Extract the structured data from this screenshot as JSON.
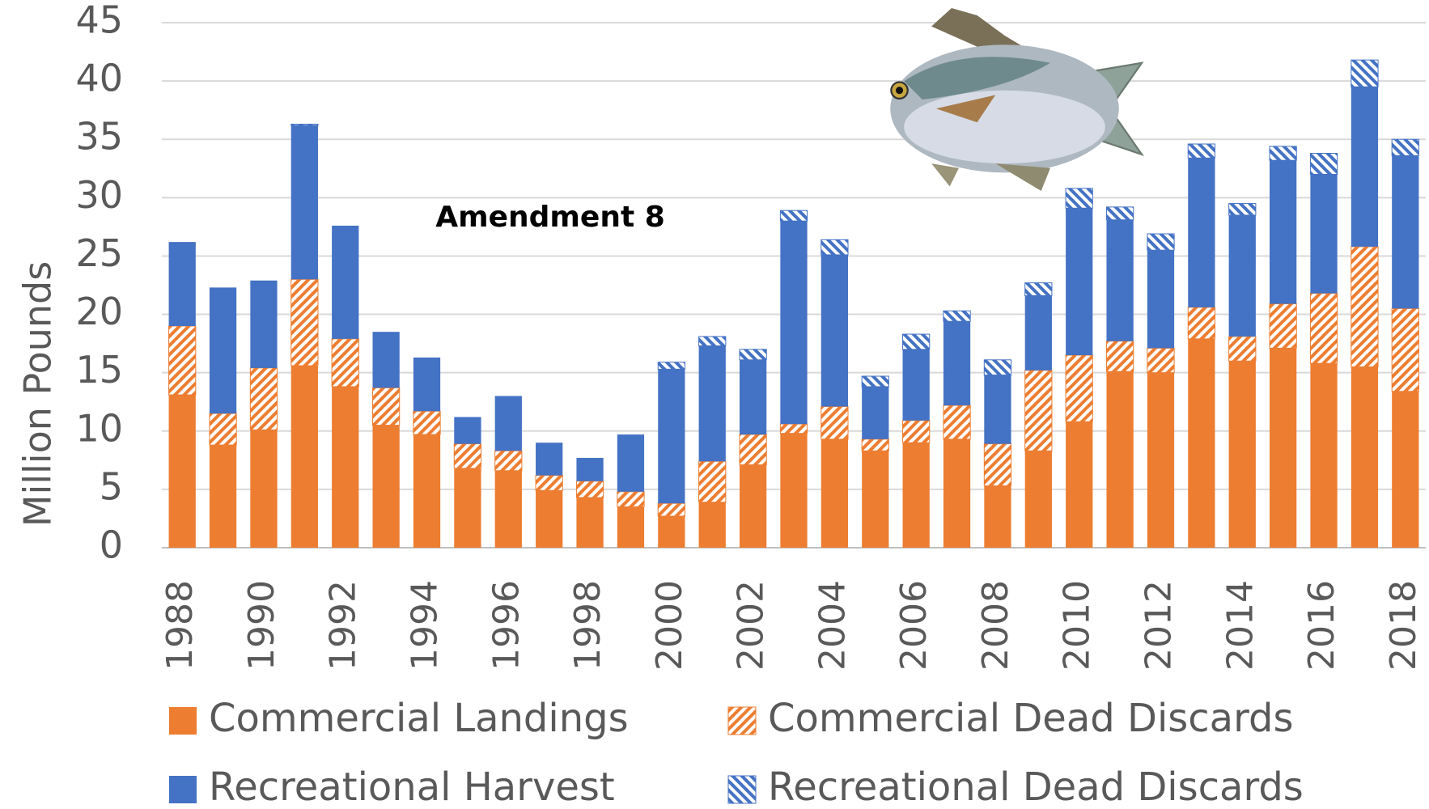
{
  "chart_data": {
    "type": "stacked_bar",
    "y_label": "Million Pounds",
    "annotation": "Amendment 8",
    "categories": [
      "1988",
      null,
      "1990",
      null,
      "1992",
      null,
      "1994",
      null,
      "1996",
      null,
      "1998",
      null,
      "2000",
      null,
      "2002",
      null,
      "2004",
      null,
      "2006",
      null,
      "2008",
      null,
      "2010",
      null,
      "2012",
      null,
      "2014",
      null,
      "2016",
      null,
      "2018"
    ],
    "series": [
      {
        "name": "Commercial Landings",
        "color": "#ED7D31",
        "fill": "solid",
        "values": [
          13.1,
          8.8,
          10.1,
          15.6,
          13.8,
          10.5,
          9.7,
          6.8,
          6.6,
          4.9,
          4.3,
          3.5,
          2.7,
          3.9,
          7.1,
          9.8,
          9.3,
          8.3,
          9.0,
          9.3,
          5.3,
          8.3,
          10.8,
          15.1,
          15.0,
          17.9,
          16.0,
          17.1,
          15.8,
          15.5,
          13.4
        ]
      },
      {
        "name": "Commercial Dead Discards",
        "color": "#ED7D31",
        "fill": "hatched",
        "values": [
          5.9,
          2.7,
          5.3,
          7.4,
          4.1,
          3.2,
          2.0,
          2.1,
          1.7,
          1.3,
          1.4,
          1.3,
          1.1,
          3.5,
          2.6,
          0.8,
          2.8,
          1.0,
          1.9,
          2.9,
          3.6,
          6.9,
          5.7,
          2.6,
          2.1,
          2.7,
          2.1,
          3.8,
          6.0,
          10.3,
          7.1
        ]
      },
      {
        "name": "Recreational Harvest",
        "color": "#4472C4",
        "fill": "solid",
        "values": [
          7.2,
          10.8,
          7.5,
          13.2,
          9.7,
          4.8,
          4.6,
          2.3,
          4.7,
          2.8,
          2.0,
          4.9,
          11.5,
          9.9,
          6.4,
          17.4,
          13.0,
          4.5,
          6.1,
          7.2,
          5.9,
          6.4,
          12.6,
          10.4,
          8.4,
          12.8,
          10.4,
          12.3,
          10.2,
          13.7,
          13.1
        ]
      },
      {
        "name": "Recreational Dead Discards",
        "color": "#4472C4",
        "fill": "hatched",
        "values": [
          0,
          0,
          0,
          0.1,
          0,
          0,
          0,
          0,
          0,
          0,
          0,
          0,
          0.6,
          0.8,
          0.9,
          0.9,
          1.3,
          0.9,
          1.3,
          0.9,
          1.3,
          1.1,
          1.7,
          1.1,
          1.4,
          1.2,
          1.0,
          1.2,
          1.8,
          2.3,
          1.4
        ]
      }
    ],
    "ylim": [
      0,
      45
    ],
    "yticks": [
      0,
      5,
      10,
      15,
      20,
      25,
      30,
      35,
      40,
      45
    ],
    "grid": true
  }
}
